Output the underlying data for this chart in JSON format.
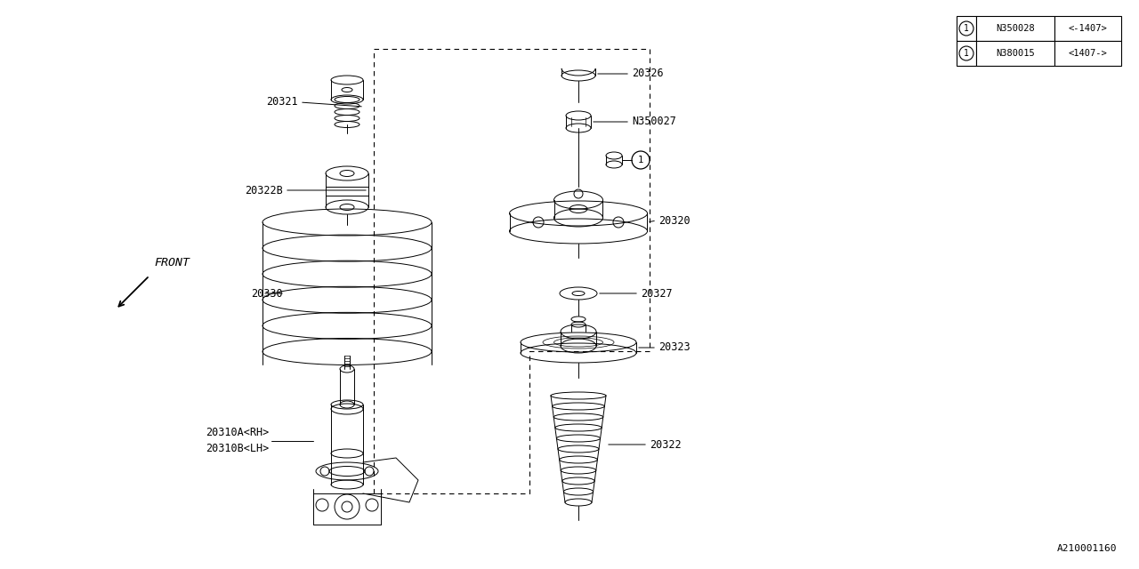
{
  "bg_color": "#ffffff",
  "line_color": "#000000",
  "fig_width": 12.8,
  "fig_height": 6.4,
  "diagram_ref": "A210001160",
  "table_rows": [
    [
      "1",
      "N350028",
      "<-1407>"
    ],
    [
      "1",
      "N380015",
      "<1407->"
    ]
  ]
}
